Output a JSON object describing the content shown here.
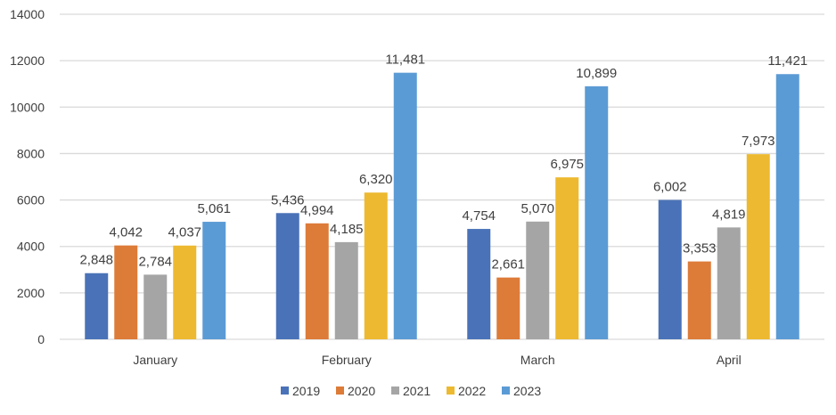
{
  "chart_data": {
    "type": "bar",
    "title": "",
    "xlabel": "",
    "ylabel": "",
    "ylim": [
      0,
      14000
    ],
    "yticks": [
      0,
      2000,
      4000,
      6000,
      8000,
      10000,
      12000,
      14000
    ],
    "grid": true,
    "legend_position": "bottom",
    "categories": [
      "January",
      "February",
      "March",
      "April"
    ],
    "series": [
      {
        "name": "2019",
        "color": "#4a72b8",
        "values": [
          2848,
          5436,
          4754,
          6002
        ],
        "labels": [
          "2,848",
          "5,436",
          "4,754",
          "6,002"
        ]
      },
      {
        "name": "2020",
        "color": "#dd7b38",
        "values": [
          4042,
          4994,
          2661,
          3353
        ],
        "labels": [
          "4,042",
          "4,994",
          "2,661",
          "3,353"
        ]
      },
      {
        "name": "2021",
        "color": "#a5a5a5",
        "values": [
          2784,
          4185,
          5070,
          4819
        ],
        "labels": [
          "2,784",
          "4,185",
          "5,070",
          "4,819"
        ]
      },
      {
        "name": "2022",
        "color": "#edb930",
        "values": [
          4037,
          6320,
          6975,
          7973
        ],
        "labels": [
          "4,037",
          "6,320",
          "6,975",
          "7,973"
        ]
      },
      {
        "name": "2023",
        "color": "#5b9bd5",
        "values": [
          5061,
          11481,
          10899,
          11421
        ],
        "labels": [
          "5,061",
          "11,481",
          "10,899",
          "11,421"
        ]
      }
    ]
  }
}
